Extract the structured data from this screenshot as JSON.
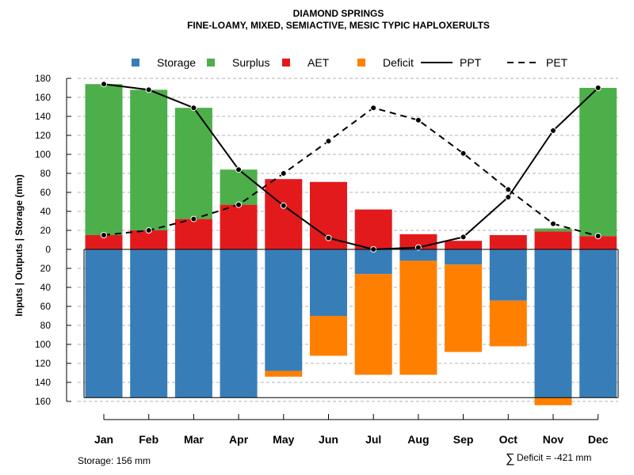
{
  "chart_data": {
    "type": "bar",
    "title": "DIAMOND SPRINGS",
    "subtitle": "FINE-LOAMY, MIXED, SEMIACTIVE, MESIC TYPIC HAPLOXERULTS",
    "ylabel": "Inputs | Outputs | Storage    (mm)",
    "ylim": [
      -165,
      180
    ],
    "ytick_values": [
      180,
      160,
      140,
      120,
      100,
      80,
      60,
      40,
      20,
      0,
      -20,
      -40,
      -60,
      -80,
      -100,
      -120,
      -140,
      -160
    ],
    "ytick_labels": [
      "180",
      "160",
      "140",
      "120",
      "100",
      "80",
      "60",
      "40",
      "20",
      "0",
      "20",
      "40",
      "60",
      "80",
      "100",
      "120",
      "140",
      "160"
    ],
    "categories": [
      "Jan",
      "Feb",
      "Mar",
      "Apr",
      "May",
      "Jun",
      "Jul",
      "Aug",
      "Sep",
      "Oct",
      "Nov",
      "Dec"
    ],
    "storage_capacity": -156,
    "series": [
      {
        "name": "AET",
        "color": "#E31A1C",
        "values": [
          15,
          20,
          32,
          47,
          74,
          71,
          42,
          16,
          9,
          15,
          19,
          14
        ]
      },
      {
        "name": "Surplus",
        "color": "#4DAF4A",
        "values": [
          159,
          148,
          117,
          37,
          0,
          0,
          0,
          0,
          0,
          0,
          3,
          156
        ]
      },
      {
        "name": "Storage",
        "color": "#377EB8",
        "values": [
          -156,
          -156,
          -156,
          -156,
          -128,
          -70,
          -26,
          -12,
          -16,
          -54,
          -156,
          -156
        ]
      },
      {
        "name": "Deficit",
        "color": "#FF7F00",
        "values": [
          0,
          0,
          0,
          0,
          -6,
          -42,
          -106,
          -120,
          -92,
          -48,
          -8,
          0
        ]
      },
      {
        "name": "PPT",
        "color": "#000000",
        "style": "solid",
        "values": [
          174,
          168,
          149,
          84,
          46,
          12,
          0,
          2,
          13,
          55,
          125,
          170
        ]
      },
      {
        "name": "PET",
        "color": "#000000",
        "style": "dashed",
        "values": [
          15,
          20,
          32,
          47,
          80,
          114,
          149,
          136,
          101,
          63,
          27,
          14
        ]
      }
    ],
    "legend": {
      "position": "top",
      "entries": [
        {
          "label": "Storage",
          "color": "#377EB8",
          "kind": "box"
        },
        {
          "label": "Surplus",
          "color": "#4DAF4A",
          "kind": "box"
        },
        {
          "label": "AET",
          "color": "#E31A1C",
          "kind": "box"
        },
        {
          "label": "Deficit",
          "color": "#FF7F00",
          "kind": "box"
        },
        {
          "label": "PPT",
          "color": "#000000",
          "kind": "solid"
        },
        {
          "label": "PET",
          "color": "#000000",
          "kind": "dashed"
        }
      ]
    },
    "footer": {
      "storage": "Storage: 156 mm",
      "deficit_symbol": "∑",
      "deficit": "Deficit = -421 mm"
    }
  }
}
